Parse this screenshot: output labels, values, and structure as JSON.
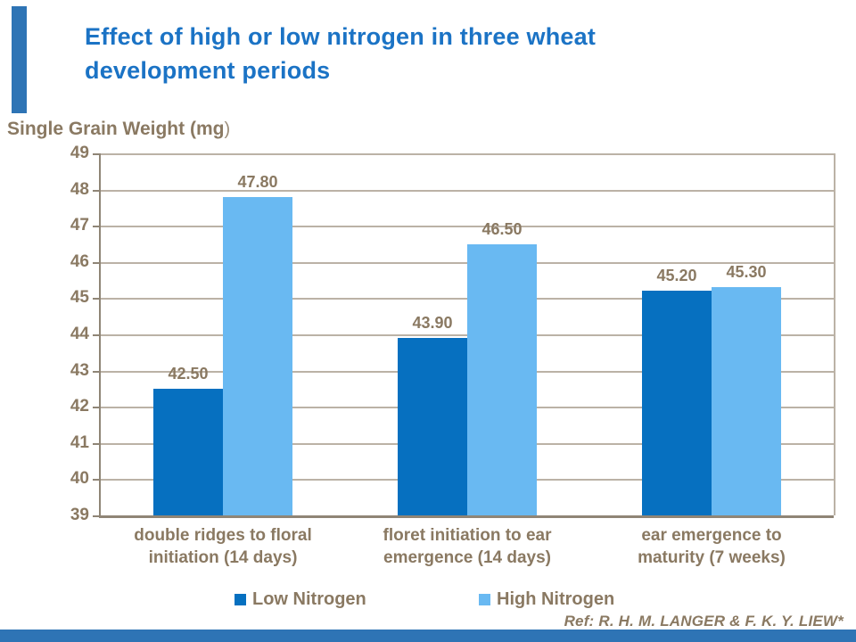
{
  "slide": {
    "title": "Effect of high or low nitrogen in three wheat development periods",
    "reference": "Ref: R. H. M. LANGER & F. K. Y. LIEW*",
    "title_color": "#1B73C5",
    "accent_color": "#2E74B5",
    "text_color": "#8A7962"
  },
  "chart_data": {
    "type": "bar",
    "title": "Effect of high or low nitrogen in three wheat development periods",
    "xlabel": "",
    "ylabel": "Single Grain Weight (mg)",
    "ylabel_main": "Single Grain Weight (mg",
    "ylabel_paren": ")",
    "categories": [
      "double ridges to floral initiation (14 days)",
      "floret initiation to ear emergence (14 days)",
      "ear emergence to maturity (7 weeks)"
    ],
    "category_lines": [
      [
        "double ridges to floral",
        "initiation (14 days)"
      ],
      [
        "floret initiation to ear",
        "emergence (14 days)"
      ],
      [
        "ear emergence to",
        "maturity (7 weeks)"
      ]
    ],
    "series": [
      {
        "name": "Low Nitrogen",
        "color": "#0670C0",
        "values": [
          42.5,
          43.9,
          45.2
        ]
      },
      {
        "name": "High Nitrogen",
        "color": "#69B9F2",
        "values": [
          47.8,
          46.5,
          45.3
        ]
      }
    ],
    "data_labels": [
      [
        "42.50",
        "43.90",
        "45.20"
      ],
      [
        "47.80",
        "46.50",
        "45.30"
      ]
    ],
    "ylim": [
      39,
      49
    ],
    "yticks": [
      39,
      40,
      41,
      42,
      43,
      44,
      45,
      46,
      47,
      48,
      49
    ],
    "grid": true,
    "legend_position": "bottom",
    "colors": {
      "text": "#8A7962",
      "gridline": "#BBB2A6",
      "axis": "#8F8576"
    }
  }
}
